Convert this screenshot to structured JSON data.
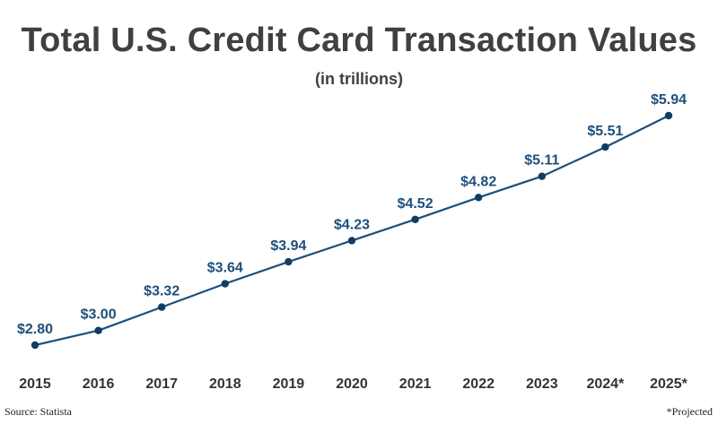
{
  "chart_data": {
    "type": "line",
    "title": "Total U.S. Credit Card Transaction Values",
    "subtitle": "(in trillions)",
    "xlabel": "",
    "ylabel": "",
    "categories": [
      "2015",
      "2016",
      "2017",
      "2018",
      "2019",
      "2020",
      "2021",
      "2022",
      "2023",
      "2024*",
      "2025*"
    ],
    "series": [
      {
        "values": [
          2.8,
          3.0,
          3.32,
          3.64,
          3.94,
          4.23,
          4.52,
          4.82,
          5.11,
          5.51,
          5.94
        ],
        "labels": [
          "$2.80",
          "$3.00",
          "$3.32",
          "$3.64",
          "$3.94",
          "$4.23",
          "$4.52",
          "$4.82",
          "$5.11",
          "$5.51",
          "$5.94"
        ]
      }
    ],
    "ylim": [
      2.8,
      5.94
    ],
    "grid": false,
    "legend": "none",
    "colors": {
      "line": "#1d4f7a",
      "marker": "#0f3d63",
      "data_label": "#1d4f7a",
      "tick_label": "#333333",
      "title": "#404040"
    }
  },
  "footer": {
    "source": "Source: Statista",
    "note": "*Projected"
  }
}
